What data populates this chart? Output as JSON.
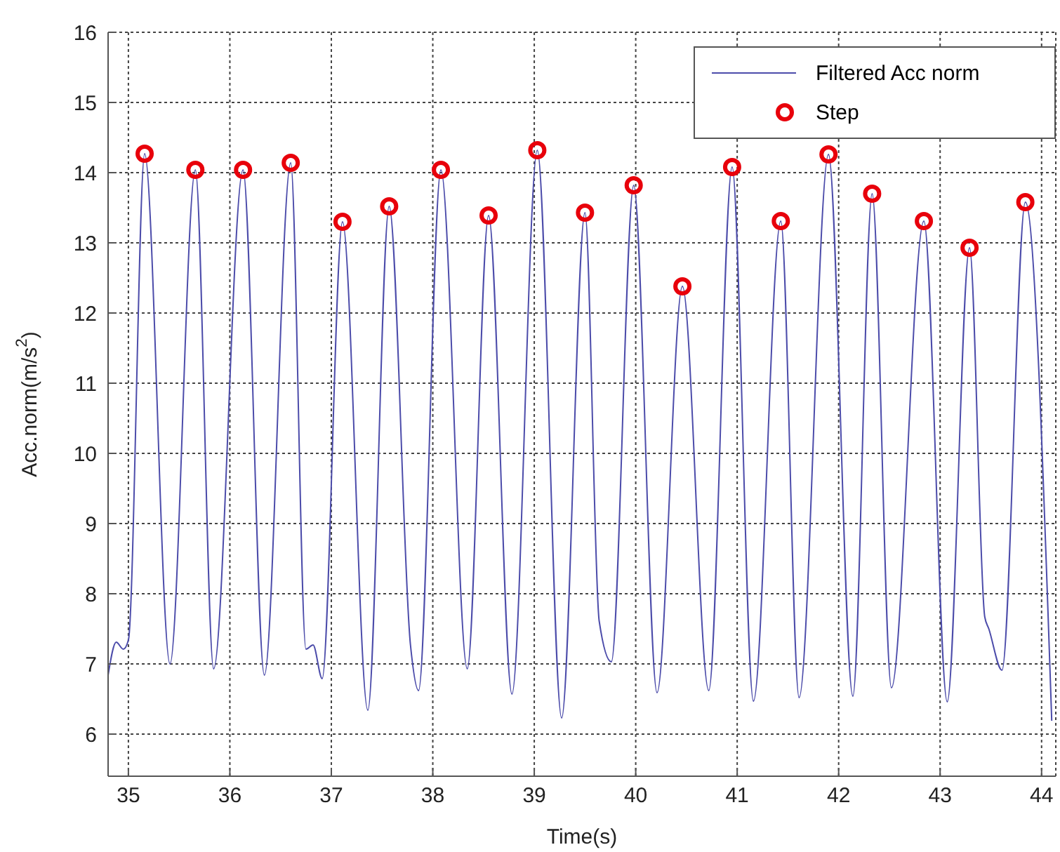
{
  "chart_data": {
    "type": "line",
    "xlabel": "Time(s)",
    "ylabel": "Acc.norm(m/s$^{2}$)",
    "xlim": [
      34.8,
      44.14
    ],
    "xticks": [
      35,
      36,
      37,
      38,
      39,
      40,
      41,
      42,
      43,
      44
    ],
    "ylim": [
      5.4,
      16
    ],
    "yticks": [
      6,
      7,
      8,
      9,
      10,
      11,
      12,
      13,
      14,
      15,
      16
    ],
    "grid": true,
    "legend": "top right",
    "series": [
      {
        "name": "Filtered Acc norm",
        "color": "#4c4caa",
        "marker": "none",
        "line_style": "solid",
        "x": [
          34.8,
          34.88,
          34.95,
          35.0,
          35.16,
          35.41,
          35.66,
          35.84,
          36.13,
          36.34,
          36.6,
          36.75,
          36.82,
          36.91,
          37.11,
          37.36,
          37.57,
          37.78,
          37.86,
          38.08,
          38.34,
          38.55,
          38.78,
          39.03,
          39.27,
          39.5,
          39.64,
          39.76,
          39.98,
          40.21,
          40.46,
          40.72,
          40.95,
          41.16,
          41.43,
          41.61,
          41.9,
          42.14,
          42.33,
          42.52,
          42.84,
          43.07,
          43.29,
          43.44,
          43.48,
          43.61,
          43.84,
          44.1
        ],
        "values": [
          6.84,
          7.31,
          7.21,
          7.34,
          14.27,
          7.0,
          14.04,
          6.93,
          14.04,
          6.84,
          14.14,
          7.21,
          7.27,
          6.79,
          13.3,
          6.34,
          13.52,
          7.27,
          6.62,
          14.04,
          6.93,
          13.39,
          6.57,
          14.32,
          6.23,
          13.43,
          7.61,
          7.03,
          13.82,
          6.59,
          12.38,
          6.62,
          14.08,
          6.47,
          13.31,
          6.52,
          14.26,
          6.54,
          13.7,
          6.66,
          13.31,
          6.46,
          12.93,
          7.67,
          7.5,
          6.91,
          13.58,
          6.19
        ]
      },
      {
        "name": "Step",
        "type": "scatter",
        "color": "#e8000b",
        "marker": "circle",
        "x": [
          35.16,
          35.66,
          36.13,
          36.6,
          37.11,
          37.57,
          38.08,
          38.55,
          39.03,
          39.5,
          39.98,
          40.46,
          40.95,
          41.43,
          41.9,
          42.33,
          42.84,
          43.29,
          43.84
        ],
        "values": [
          14.27,
          14.04,
          14.04,
          14.14,
          13.3,
          13.52,
          14.04,
          13.39,
          14.32,
          13.43,
          13.82,
          12.38,
          14.08,
          13.31,
          14.26,
          13.7,
          13.31,
          12.93,
          13.58
        ]
      }
    ]
  }
}
